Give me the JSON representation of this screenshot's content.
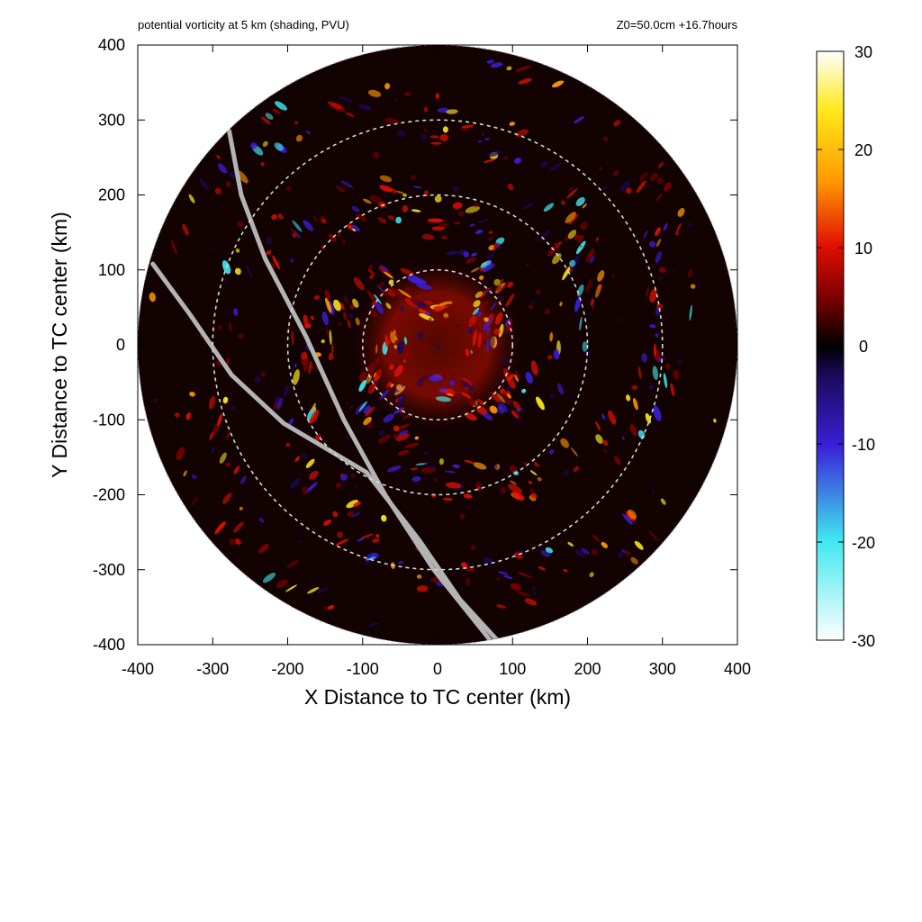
{
  "chart_data": {
    "type": "heatmap",
    "title": "potential vorticity at 5 km (shading, PVU)",
    "subtitle": "Z0=50.0cm  +16.7hours",
    "xlabel": "X Distance to TC center (km)",
    "ylabel": "Y Distance to TC center (km)",
    "xlim": [
      -400,
      400
    ],
    "ylim": [
      -400,
      400
    ],
    "xticks": [
      "-400",
      "-300",
      "-200",
      "-100",
      "0",
      "100",
      "200",
      "300",
      "400"
    ],
    "yticks": [
      "400",
      "300",
      "200",
      "100",
      "0",
      "-100",
      "-200",
      "-300",
      "-400"
    ],
    "domain_radius_km": 400,
    "reference_circles_km": [
      100,
      200,
      300
    ],
    "colorbar": {
      "range": [
        -30,
        30
      ],
      "ticks": [
        "30",
        "20",
        "10",
        "0",
        "-10",
        "-20",
        "-30"
      ],
      "colors": {
        "-30": "#ffffff",
        "-20": "#3fe8f0",
        "-10": "#3a1fd8",
        "-3": "#1a0a5a",
        "0": "#000000",
        "5": "#7a0000",
        "10": "#e01000",
        "17": "#ff9a00",
        "23": "#ffe81a",
        "30": "#ffffff"
      }
    },
    "overlay_lines": [
      {
        "points": [
          [
            -278,
            285
          ],
          [
            -262,
            200
          ],
          [
            -230,
            115
          ],
          [
            -175,
            10
          ],
          [
            -125,
            -100
          ],
          [
            -70,
            -200
          ],
          [
            -5,
            -300
          ],
          [
            75,
            -400
          ]
        ]
      },
      {
        "points": [
          [
            -380,
            108
          ],
          [
            -330,
            40
          ],
          [
            -275,
            -40
          ],
          [
            -205,
            -105
          ],
          [
            -95,
            -170
          ],
          [
            -25,
            -260
          ],
          [
            30,
            -340
          ],
          [
            85,
            -400
          ]
        ]
      }
    ]
  }
}
